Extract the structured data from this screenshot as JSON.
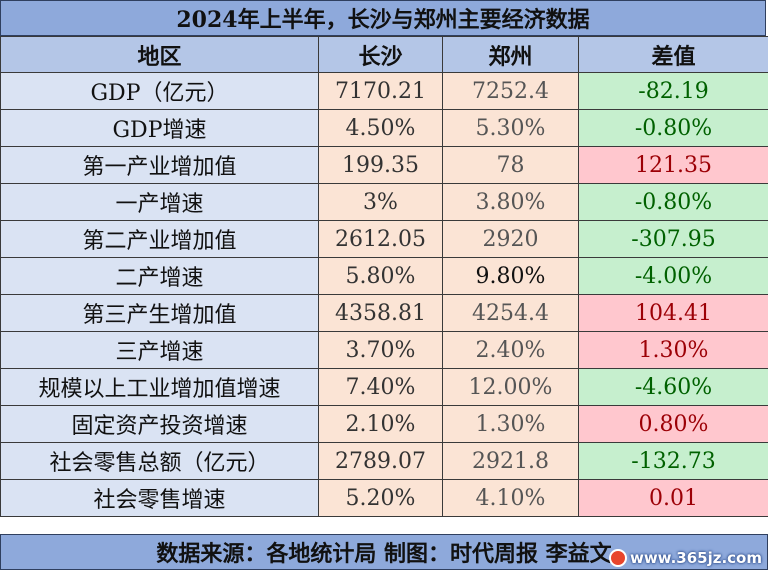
{
  "title": "2024年上半年，长沙与郑州主要经济数据",
  "headers": [
    "地区",
    "长沙",
    "郑州",
    "差值"
  ],
  "rows": [
    {
      "region": "GDP（亿元）",
      "changsha": "7170.21",
      "zhengzhou": "7252.4",
      "diff": "-82.19",
      "diff_sign": "neg"
    },
    {
      "region": "GDP增速",
      "changsha": "4.50%",
      "zhengzhou": "5.30%",
      "diff": "-0.80%",
      "diff_sign": "neg"
    },
    {
      "region": "第一产业增加值",
      "changsha": "199.35",
      "zhengzhou": "78",
      "diff": "121.35",
      "diff_sign": "pos"
    },
    {
      "region": "一产增速",
      "changsha": "3%",
      "zhengzhou": "3.80%",
      "diff": "-0.80%",
      "diff_sign": "neg"
    },
    {
      "region": "第二产业增加值",
      "changsha": "2612.05",
      "zhengzhou": "2920",
      "diff": "-307.95",
      "diff_sign": "neg"
    },
    {
      "region": "二产增速",
      "changsha": "5.80%",
      "zhengzhou": "9.80%",
      "diff": "-4.00%",
      "diff_sign": "neg",
      "zhengzhou_bold": true
    },
    {
      "region": "第三产生增加值",
      "changsha": "4358.81",
      "zhengzhou": "4254.4",
      "diff": "104.41",
      "diff_sign": "pos"
    },
    {
      "region": "三产增速",
      "changsha": "3.70%",
      "zhengzhou": "2.40%",
      "diff": "1.30%",
      "diff_sign": "pos"
    },
    {
      "region": "规模以上工业增加值增速",
      "changsha": "7.40%",
      "zhengzhou": "12.00%",
      "diff": "-4.60%",
      "diff_sign": "neg"
    },
    {
      "region": "固定资产投资增速",
      "changsha": "2.10%",
      "zhengzhou": "1.30%",
      "diff": "0.80%",
      "diff_sign": "pos"
    },
    {
      "region": "社会零售总额（亿元）",
      "changsha": "2789.07",
      "zhengzhou": "2921.8",
      "diff": "-132.73",
      "diff_sign": "neg"
    },
    {
      "region": "社会零售增速",
      "changsha": "5.20%",
      "zhengzhou": "4.10%",
      "diff": "0.01",
      "diff_sign": "pos"
    }
  ],
  "footer": "数据来源：各地统计局 制图：时代周报 李益文",
  "watermark": "www.365jz.com",
  "colors": {
    "header_bg": "#8ea9db",
    "col_header_bg": "#b4c6e7",
    "region_bg": "#dae3f3",
    "value_bg": "#fbe4d5",
    "neg_bg": "#c6efce",
    "neg_text": "#006100",
    "pos_bg": "#ffc7ce",
    "pos_text": "#9c0006"
  }
}
